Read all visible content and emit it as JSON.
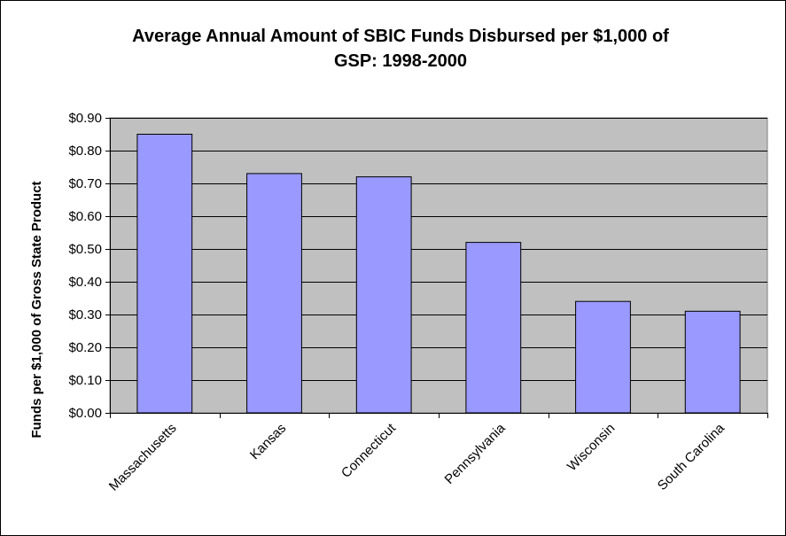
{
  "chart_data": {
    "type": "bar",
    "title_lines": [
      "Average Annual Amount of SBIC Funds Disbursed per $1,000 of",
      "GSP: 1998-2000"
    ],
    "xlabel": "",
    "ylabel": "Funds per $1,000 of Gross State Product",
    "categories": [
      "Massachusetts",
      "Kansas",
      "Connecticut",
      "Pennsylvania",
      "Wisconsin",
      "South Carolina"
    ],
    "values": [
      0.85,
      0.73,
      0.72,
      0.52,
      0.34,
      0.31
    ],
    "ylim": [
      0,
      0.9
    ],
    "yticks": [
      0.0,
      0.1,
      0.2,
      0.3,
      0.4,
      0.5,
      0.6,
      0.7,
      0.8,
      0.9
    ],
    "ytick_labels": [
      "$0.00",
      "$0.10",
      "$0.20",
      "$0.30",
      "$0.40",
      "$0.50",
      "$0.60",
      "$0.70",
      "$0.80",
      "$0.90"
    ],
    "grid": true,
    "legend": "none",
    "colors": {
      "bar_fill": "#9999ff",
      "bar_stroke": "#000000",
      "plot_background": "#c0c0c0",
      "gridline": "#000000"
    }
  }
}
